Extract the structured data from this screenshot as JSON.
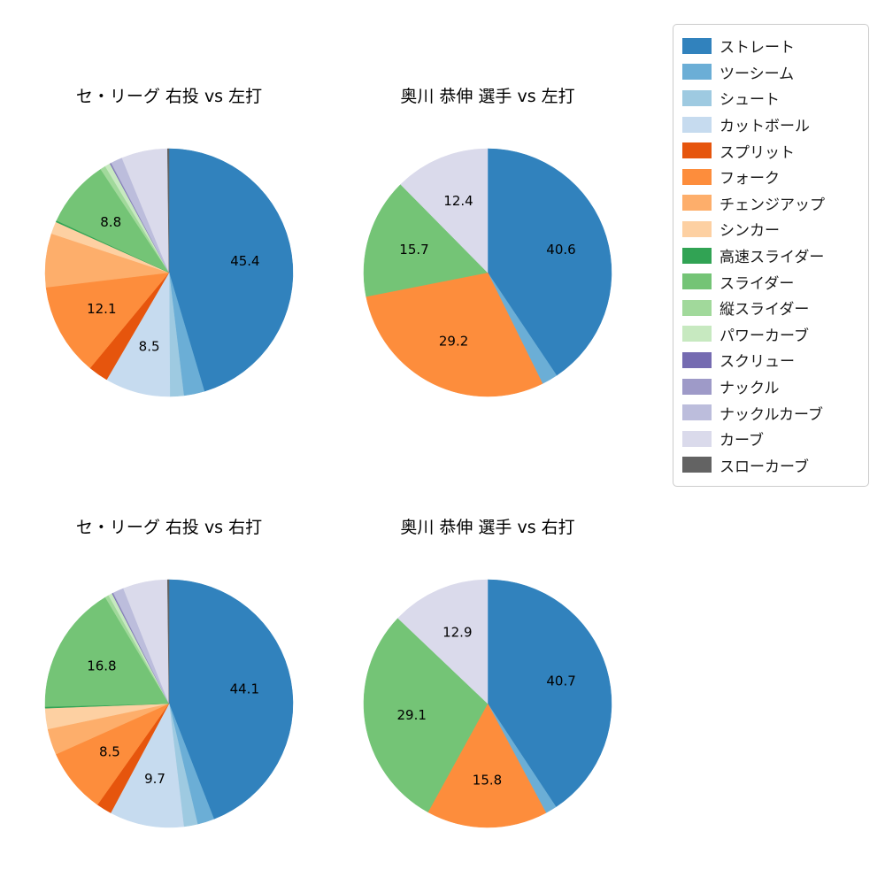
{
  "chart_data": {
    "type": "pie",
    "layout": "2x2 grid of pie charts with one shared legend on the right",
    "start_angle_deg": 90,
    "direction": "clockwise",
    "label_threshold": 8,
    "label_radius_fraction": 0.62,
    "categories": [
      "ストレート",
      "ツーシーム",
      "シュート",
      "カットボール",
      "スプリット",
      "フォーク",
      "チェンジアップ",
      "シンカー",
      "高速スライダー",
      "スライダー",
      "縦スライダー",
      "パワーカーブ",
      "スクリュー",
      "ナックル",
      "ナックルカーブ",
      "カーブ",
      "スローカーブ"
    ],
    "colors": [
      "#3182bd",
      "#6baed6",
      "#9ecae1",
      "#c6dbef",
      "#e6550d",
      "#fd8d3c",
      "#fdae6b",
      "#fdd0a2",
      "#31a354",
      "#74c476",
      "#a1d99b",
      "#c7e9c0",
      "#756bb1",
      "#9e9ac8",
      "#bcbddc",
      "#dadaeb",
      "#636363"
    ],
    "pies": [
      {
        "title": "セ・リーグ 右投 vs 左打",
        "labeled_values": {
          "ストレート": 45.4,
          "カットボール": 8.5,
          "フォーク": 12.1,
          "スライダー": 8.8
        },
        "values": [
          45.4,
          2.7,
          1.8,
          8.5,
          2.6,
          12.1,
          7.0,
          1.6,
          0.2,
          8.8,
          0.7,
          0.7,
          0.1,
          0.1,
          1.5,
          6.0,
          0.2
        ]
      },
      {
        "title": "奥川 恭伸 選手 vs 左打",
        "labeled_values": {
          "ストレート": 40.6,
          "フォーク": 29.2,
          "スライダー": 15.7,
          "カーブ": 12.4
        },
        "values": [
          40.6,
          2.1,
          0,
          0,
          0,
          29.2,
          0,
          0,
          0,
          15.7,
          0,
          0,
          0,
          0,
          0,
          12.4,
          0
        ]
      },
      {
        "title": "セ・リーグ 右投 vs 右打",
        "labeled_values": {
          "ストレート": 44.1,
          "カットボール": 9.7,
          "フォーク": 8.5,
          "スライダー": 16.8
        },
        "values": [
          44.1,
          2.2,
          1.8,
          9.7,
          2.0,
          8.5,
          3.4,
          2.7,
          0.2,
          16.8,
          0.5,
          0.5,
          0.1,
          0.1,
          1.4,
          5.8,
          0.2
        ]
      },
      {
        "title": "奥川 恭伸 選手 vs 右打",
        "labeled_values": {
          "ストレート": 40.7,
          "フォーク": 15.8,
          "スライダー": 29.1,
          "カーブ": 12.9
        },
        "values": [
          40.7,
          1.5,
          0,
          0,
          0,
          15.8,
          0,
          0,
          0,
          29.1,
          0,
          0,
          0,
          0,
          0,
          12.9,
          0
        ]
      }
    ]
  }
}
